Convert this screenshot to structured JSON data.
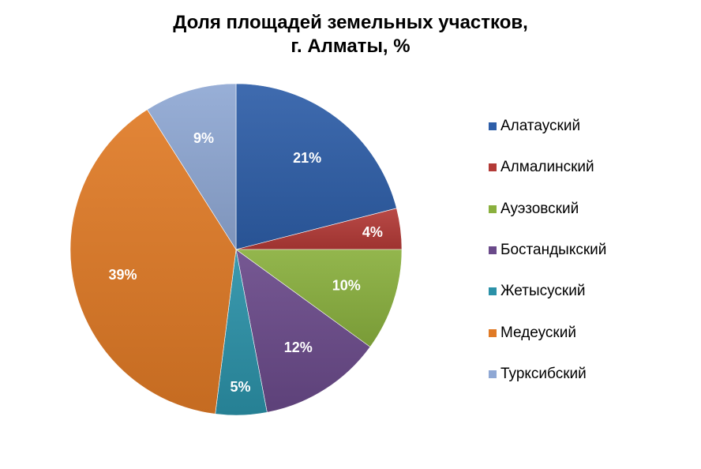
{
  "chart_data": {
    "type": "pie",
    "title_lines": [
      "Доля площадей земельных участков,",
      "г. Алматы,  %"
    ],
    "slices": [
      {
        "name": "Алатауский",
        "value": 21,
        "label": "21%",
        "color": "#2E5EA8"
      },
      {
        "name": "Алмалинский",
        "value": 4,
        "label": "4%",
        "color": "#B33A37"
      },
      {
        "name": "Ауэзовский",
        "value": 10,
        "label": "10%",
        "color": "#8AB03E"
      },
      {
        "name": "Бостандыкский",
        "value": 12,
        "label": "12%",
        "color": "#6A4A8A"
      },
      {
        "name": "Жетысуский",
        "value": 5,
        "label": "5%",
        "color": "#2B91A8"
      },
      {
        "name": "Медеуский",
        "value": 39,
        "label": "39%",
        "color": "#E07A26"
      },
      {
        "name": "Турксибский",
        "value": 9,
        "label": "9%",
        "color": "#8FA8D4"
      }
    ],
    "legend_position": "right",
    "start_angle": "12 o'clock",
    "direction": "clockwise"
  }
}
